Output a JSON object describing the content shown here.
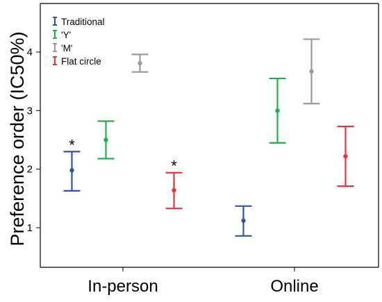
{
  "chart_data": {
    "type": "errorbar",
    "title": "",
    "xlabel": "",
    "ylabel": "Preference order (IC50%)",
    "categories": [
      "In-person",
      "Online"
    ],
    "ylim": [
      0.5,
      4.4
    ],
    "yticks": [
      "1",
      "2",
      "3",
      "4"
    ],
    "grid": false,
    "legend": {
      "placement": "top-left",
      "entries": [
        "Traditional",
        "'Y'",
        "'M'",
        "Flat circle"
      ]
    },
    "series": [
      {
        "name": "Traditional",
        "color": "#2b54a8",
        "points": [
          {
            "category": "In-person",
            "mean": 1.98,
            "lower": 1.63,
            "upper": 2.3
          },
          {
            "category": "Online",
            "mean": 1.12,
            "lower": 0.86,
            "upper": 1.37
          }
        ]
      },
      {
        "name": "'Y'",
        "color": "#1fb04a",
        "points": [
          {
            "category": "In-person",
            "mean": 2.5,
            "lower": 2.18,
            "upper": 2.82
          },
          {
            "category": "Online",
            "mean": 3.0,
            "lower": 2.45,
            "upper": 3.55
          }
        ]
      },
      {
        "name": "'M'",
        "color": "#9a9a9a",
        "points": [
          {
            "category": "In-person",
            "mean": 3.81,
            "lower": 3.66,
            "upper": 3.96
          },
          {
            "category": "Online",
            "mean": 3.67,
            "lower": 3.12,
            "upper": 4.22
          }
        ]
      },
      {
        "name": "Flat circle",
        "color": "#e8343c",
        "points": [
          {
            "category": "In-person",
            "mean": 1.64,
            "lower": 1.33,
            "upper": 1.94
          },
          {
            "category": "Online",
            "mean": 2.22,
            "lower": 1.71,
            "upper": 2.73
          }
        ]
      }
    ],
    "annotations": [
      {
        "text": "*",
        "series": "Traditional",
        "category": "In-person"
      },
      {
        "text": "*",
        "series": "Flat circle",
        "category": "In-person"
      }
    ]
  }
}
